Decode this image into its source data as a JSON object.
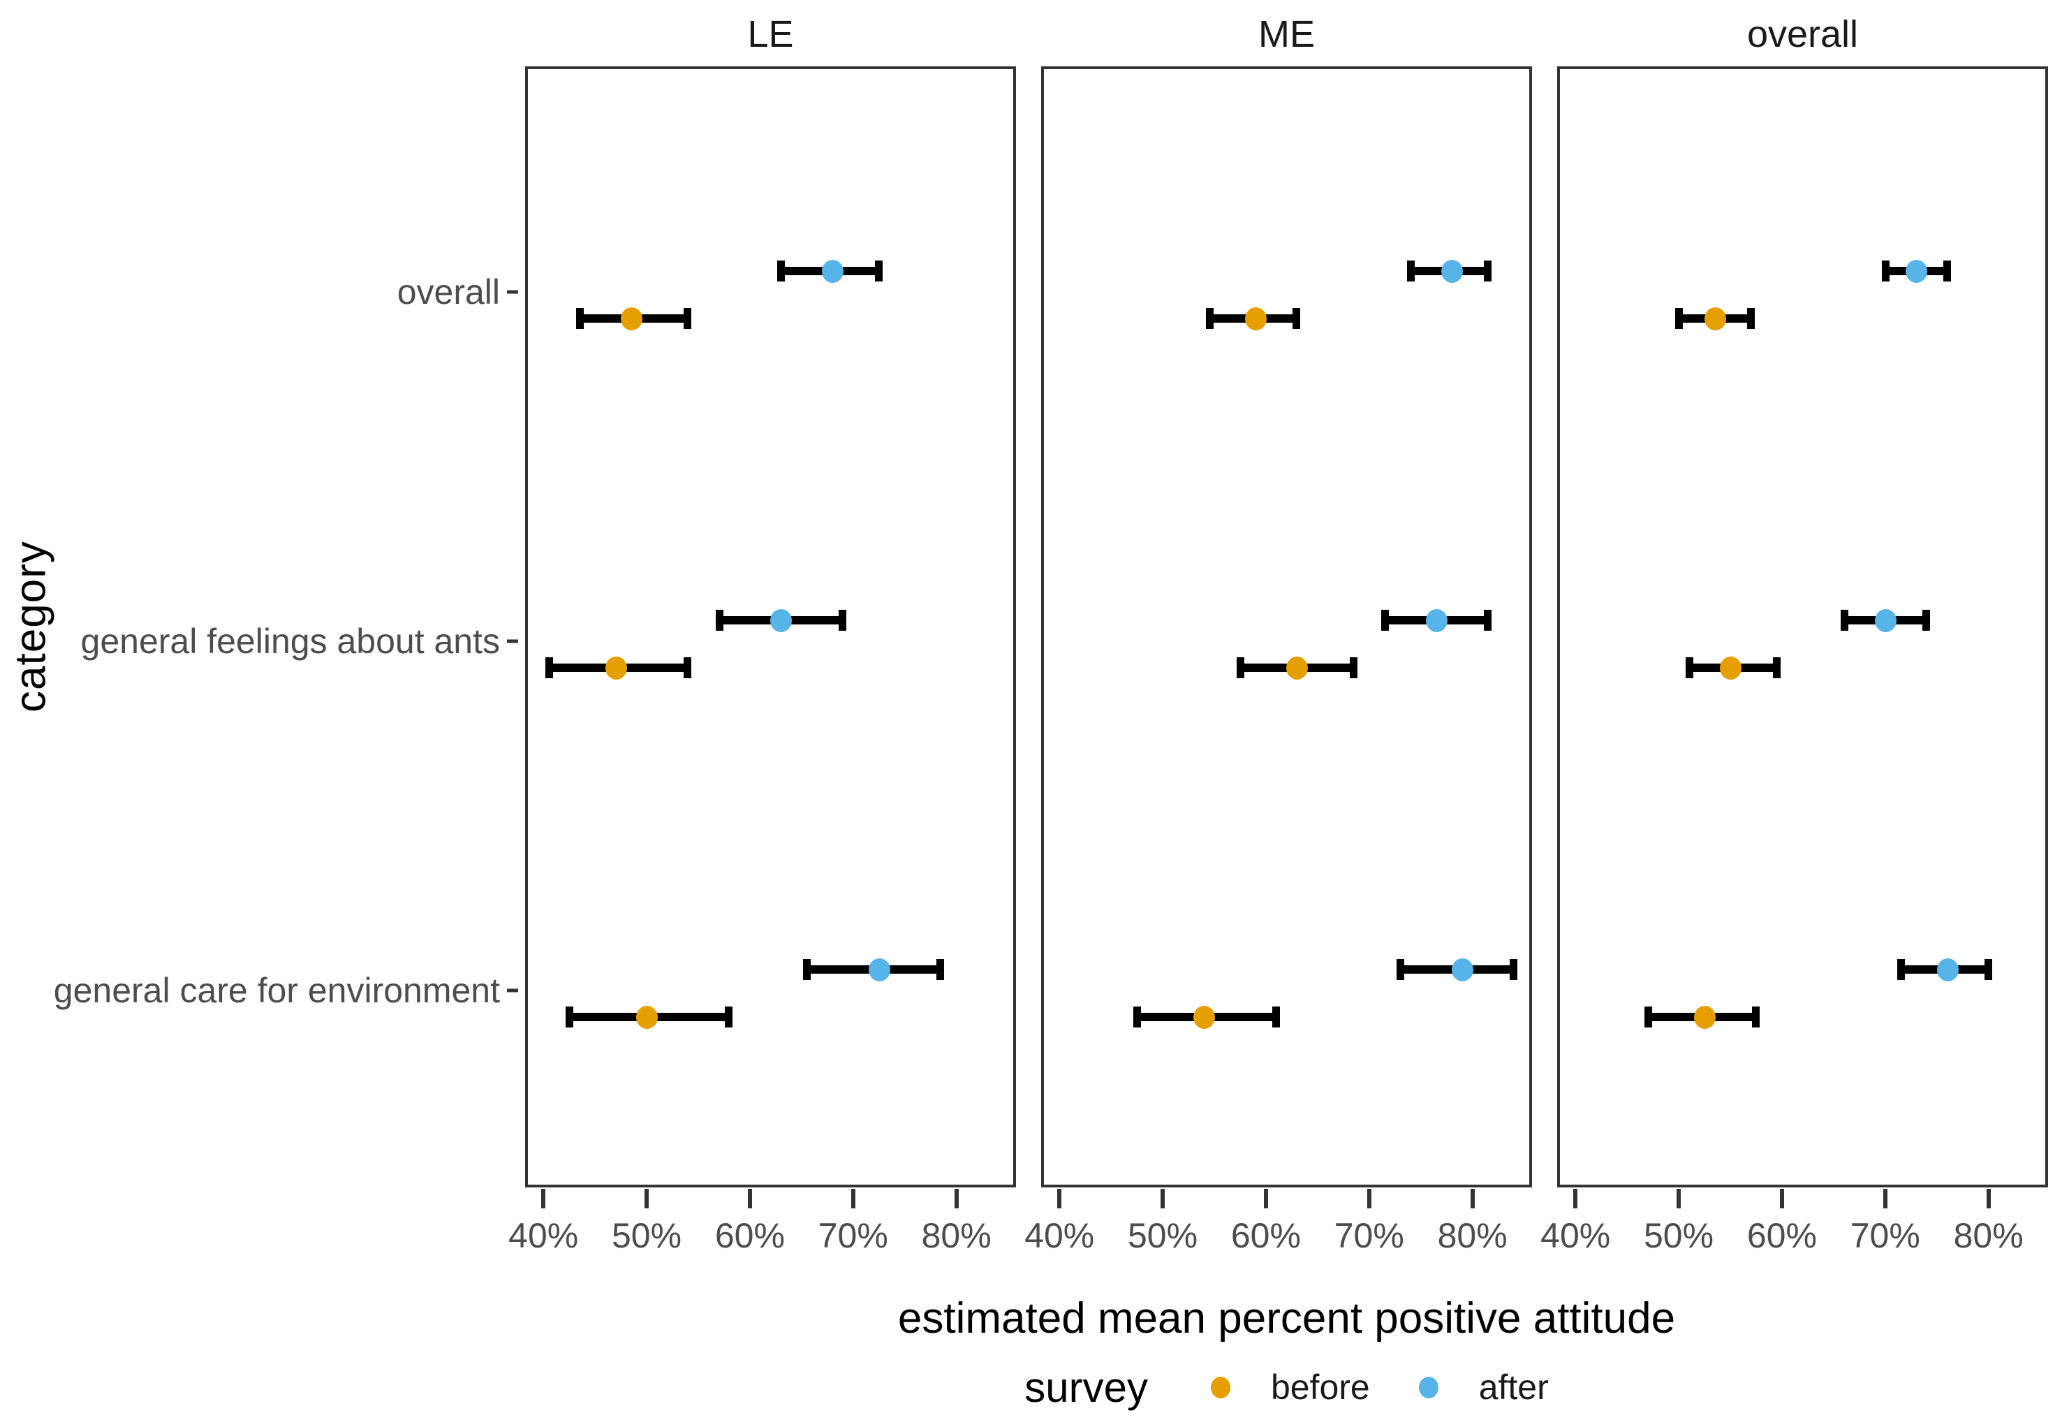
{
  "figure": {
    "y_axis_title": "category",
    "x_axis_title": "estimated mean percent positive attitude",
    "legend": {
      "title": "survey",
      "items": [
        {
          "label": "before",
          "color": "#E69F00"
        },
        {
          "label": "after",
          "color": "#56B4E9"
        }
      ]
    }
  },
  "chart_data": {
    "type": "scatter",
    "subtype": "pointrange-dodged-faceted",
    "facets": [
      "LE",
      "ME",
      "overall"
    ],
    "categories": [
      "overall",
      "general feelings about ants",
      "general care for environment"
    ],
    "x_unit": "percent",
    "xlim": [
      38.5,
      85.5
    ],
    "x_ticks": [
      40,
      50,
      60,
      70,
      80
    ],
    "x_tick_labels": [
      "40%",
      "50%",
      "60%",
      "70%",
      "80%"
    ],
    "grid": "off",
    "legend_position": "bottom",
    "series": [
      {
        "name": "before",
        "color": "#E69F00"
      },
      {
        "name": "after",
        "color": "#56B4E9"
      }
    ],
    "points": [
      {
        "facet": "LE",
        "category": "overall",
        "survey": "before",
        "mean": 48.5,
        "lo": 43.5,
        "hi": 54.0
      },
      {
        "facet": "LE",
        "category": "overall",
        "survey": "after",
        "mean": 68.0,
        "lo": 63.0,
        "hi": 72.5
      },
      {
        "facet": "LE",
        "category": "general feelings about ants",
        "survey": "before",
        "mean": 47.0,
        "lo": 40.5,
        "hi": 54.0
      },
      {
        "facet": "LE",
        "category": "general feelings about ants",
        "survey": "after",
        "mean": 63.0,
        "lo": 57.0,
        "hi": 69.0
      },
      {
        "facet": "LE",
        "category": "general care for environment",
        "survey": "before",
        "mean": 50.0,
        "lo": 42.5,
        "hi": 58.0
      },
      {
        "facet": "LE",
        "category": "general care for environment",
        "survey": "after",
        "mean": 72.5,
        "lo": 65.5,
        "hi": 78.5
      },
      {
        "facet": "ME",
        "category": "overall",
        "survey": "before",
        "mean": 59.0,
        "lo": 54.5,
        "hi": 63.0
      },
      {
        "facet": "ME",
        "category": "overall",
        "survey": "after",
        "mean": 78.0,
        "lo": 74.0,
        "hi": 81.5
      },
      {
        "facet": "ME",
        "category": "general feelings about ants",
        "survey": "before",
        "mean": 63.0,
        "lo": 57.5,
        "hi": 68.5
      },
      {
        "facet": "ME",
        "category": "general feelings about ants",
        "survey": "after",
        "mean": 76.5,
        "lo": 71.5,
        "hi": 81.5
      },
      {
        "facet": "ME",
        "category": "general care for environment",
        "survey": "before",
        "mean": 54.0,
        "lo": 47.5,
        "hi": 61.0
      },
      {
        "facet": "ME",
        "category": "general care for environment",
        "survey": "after",
        "mean": 79.0,
        "lo": 73.0,
        "hi": 84.0
      },
      {
        "facet": "overall",
        "category": "overall",
        "survey": "before",
        "mean": 53.5,
        "lo": 50.0,
        "hi": 57.0
      },
      {
        "facet": "overall",
        "category": "overall",
        "survey": "after",
        "mean": 73.0,
        "lo": 70.0,
        "hi": 76.0
      },
      {
        "facet": "overall",
        "category": "general feelings about ants",
        "survey": "before",
        "mean": 55.0,
        "lo": 51.0,
        "hi": 59.5
      },
      {
        "facet": "overall",
        "category": "general feelings about ants",
        "survey": "after",
        "mean": 70.0,
        "lo": 66.0,
        "hi": 74.0
      },
      {
        "facet": "overall",
        "category": "general care for environment",
        "survey": "before",
        "mean": 52.5,
        "lo": 47.0,
        "hi": 57.5
      },
      {
        "facet": "overall",
        "category": "general care for environment",
        "survey": "after",
        "mean": 76.0,
        "lo": 71.5,
        "hi": 80.0
      }
    ]
  }
}
